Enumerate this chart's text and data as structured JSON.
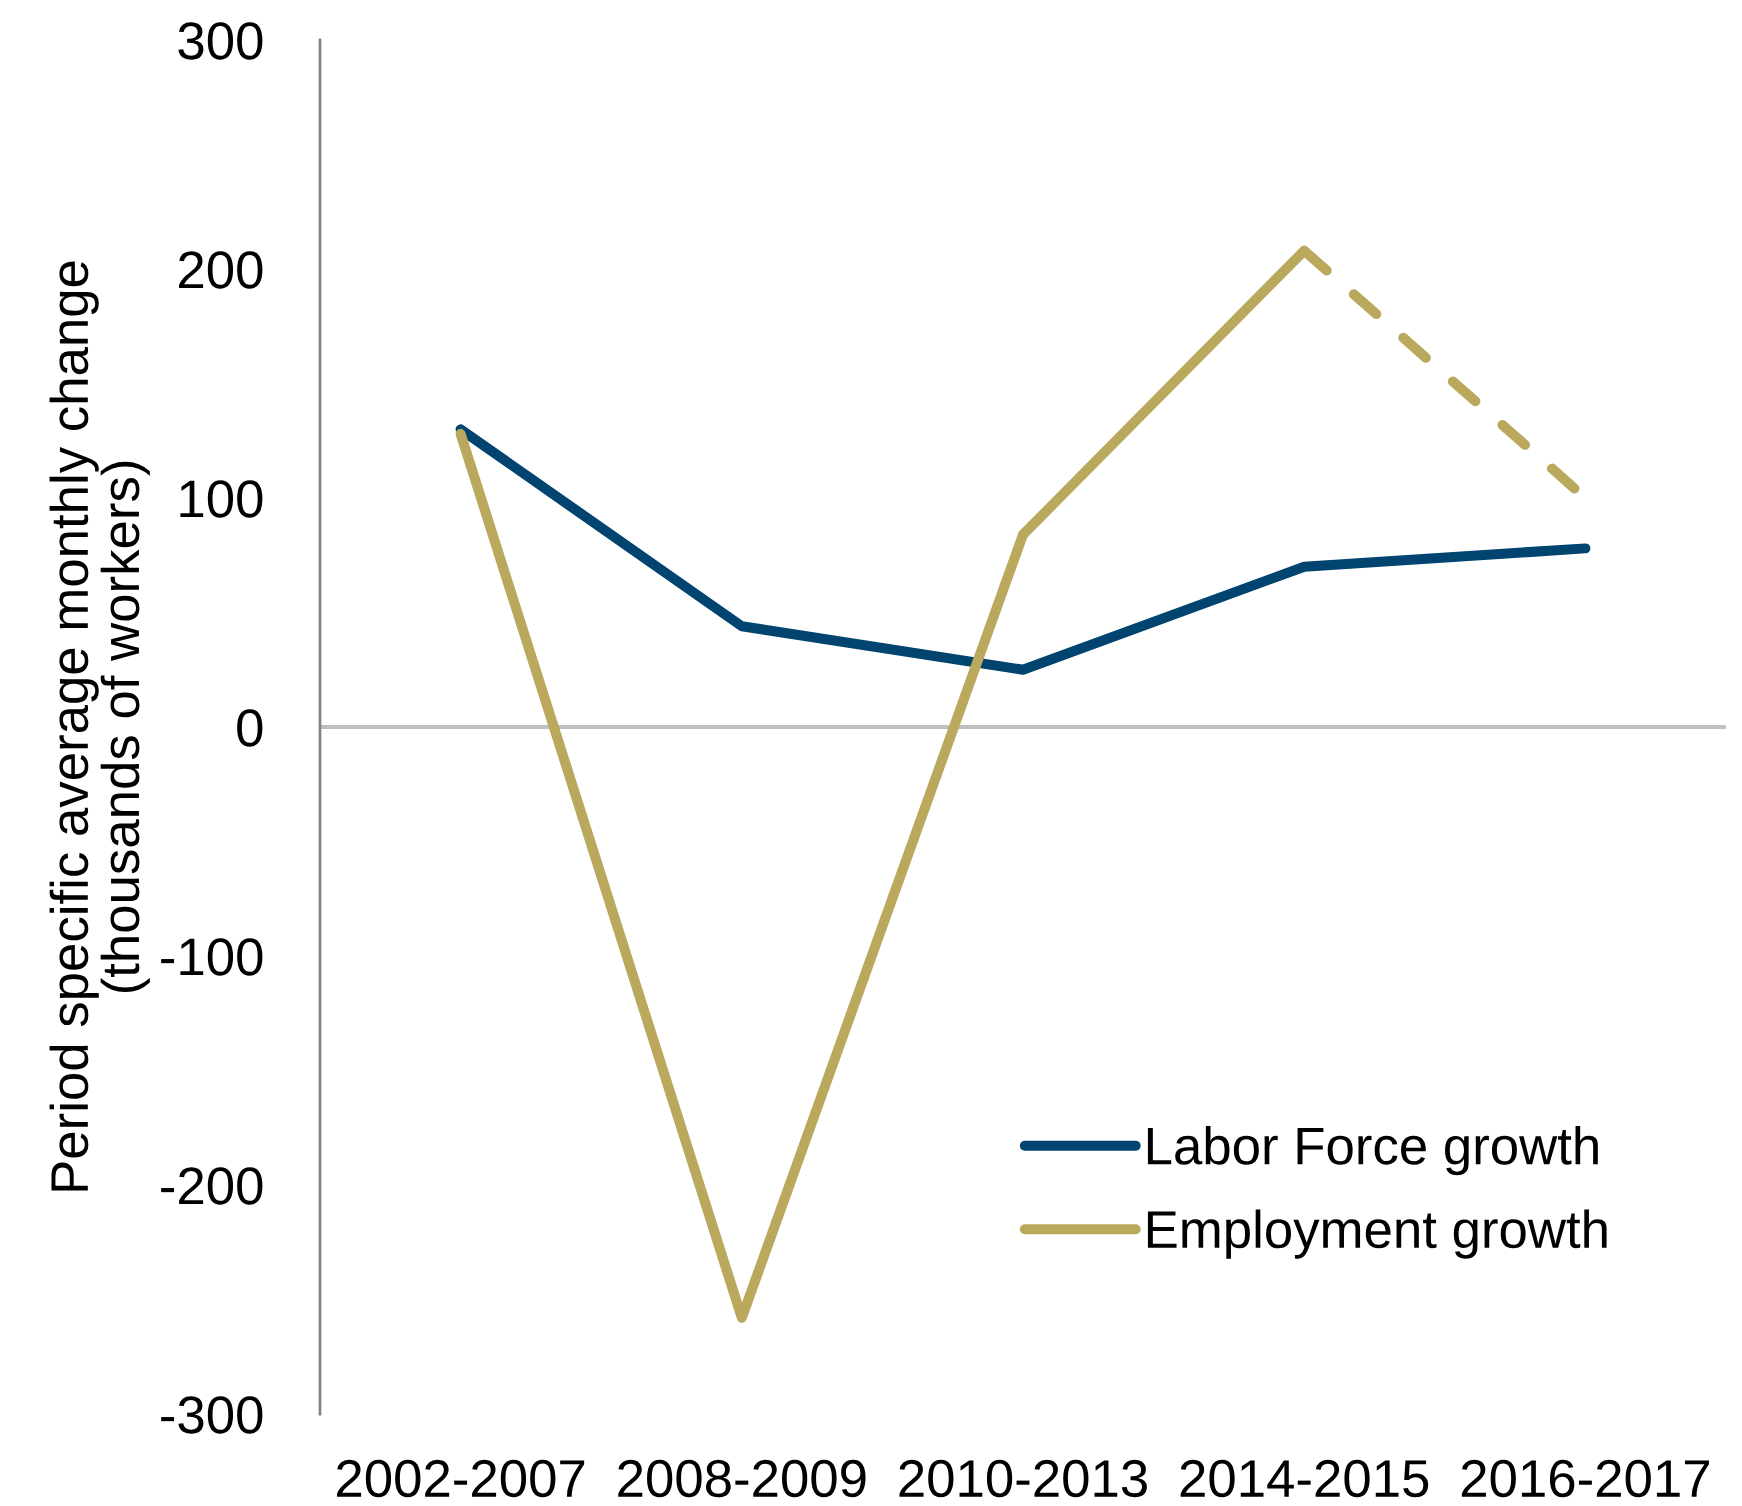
{
  "chart_data": {
    "type": "line",
    "ylabel": "Period specific average monthly change\n(thousands of workers)",
    "categories": [
      "2002-2007",
      "2008-2009",
      "2010-2013",
      "2014-2015",
      "2016-2017"
    ],
    "series": [
      {
        "name": "Labor Force growth",
        "color": "#00446f",
        "values": [
          130,
          44,
          25,
          70,
          78
        ]
      },
      {
        "name": "Employment growth",
        "color": "#baa85c",
        "values": [
          128,
          -258,
          84,
          208,
          null
        ]
      },
      {
        "color": "#baa85c",
        "values": [
          null,
          null,
          null,
          208,
          100
        ],
        "line_style": "dashed"
      }
    ],
    "ylim": [
      -300,
      300
    ],
    "yticks": [
      -300,
      -200,
      -100,
      0,
      100,
      200,
      300
    ],
    "ref_lines": [
      {
        "axis": "y",
        "value": 0,
        "color": "#bfbfbf"
      }
    ],
    "legend": "bottom right",
    "grid": false,
    "marker": "none",
    "line_style": "solid"
  }
}
